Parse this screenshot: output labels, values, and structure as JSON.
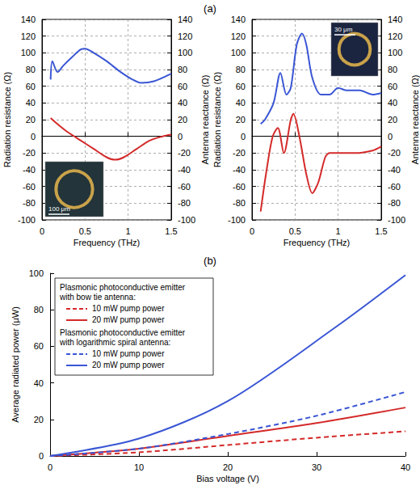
{
  "panel_labels": [
    "(a)",
    "(b)"
  ],
  "chart_data": [
    {
      "type": "line",
      "xlabel": "Frequency (THz)",
      "ylabel": "Radiation resistance (Ω)",
      "y2label": "Antenna reactance (Ω)",
      "xlim": [
        0,
        1.5
      ],
      "xticks": [
        0,
        0.5,
        1,
        1.5
      ],
      "ylim": [
        -100,
        140
      ],
      "yticks": [
        -100,
        -80,
        -60,
        -40,
        -20,
        0,
        20,
        40,
        60,
        80,
        100,
        120,
        140
      ],
      "y2lim": [
        -100,
        140
      ],
      "y2ticks": [
        -100,
        -80,
        -60,
        -40,
        -20,
        0,
        20,
        40,
        60,
        80,
        100,
        120,
        140
      ],
      "grid": true,
      "annotations": [
        "100 μm"
      ],
      "series": [
        {
          "color": "#3a56d4",
          "axis": "y",
          "line_style": "solid",
          "x": [
            0.1,
            0.12,
            0.18,
            0.25,
            0.35,
            0.45,
            0.5,
            0.6,
            0.75,
            0.9,
            1.05,
            1.15,
            1.3,
            1.5
          ],
          "values": [
            68,
            90,
            77,
            85,
            95,
            104,
            105,
            100,
            90,
            78,
            68,
            64,
            66,
            75
          ]
        },
        {
          "color": "#d42a2a",
          "axis": "y2",
          "line_style": "solid",
          "x": [
            0.1,
            0.2,
            0.3,
            0.45,
            0.6,
            0.75,
            0.85,
            0.95,
            1.1,
            1.25,
            1.4,
            1.5
          ],
          "values": [
            22,
            13,
            5,
            -5,
            -15,
            -25,
            -28,
            -25,
            -15,
            -5,
            0,
            2
          ]
        }
      ]
    },
    {
      "type": "line",
      "xlabel": "Frequency (THz)",
      "ylabel": "Radiation resistance (Ω)",
      "y2label": "Antenna reactance (Ω)",
      "xlim": [
        0,
        1.5
      ],
      "xticks": [
        0,
        0.5,
        1,
        1.5
      ],
      "ylim": [
        -100,
        140
      ],
      "yticks": [
        -100,
        -80,
        -60,
        -40,
        -20,
        0,
        20,
        40,
        60,
        80,
        100,
        120,
        140
      ],
      "y2lim": [
        -100,
        140
      ],
      "y2ticks": [
        -100,
        -80,
        -60,
        -40,
        -20,
        0,
        20,
        40,
        60,
        80,
        100,
        120,
        140
      ],
      "grid": true,
      "annotations": [
        "30 μm"
      ],
      "series": [
        {
          "color": "#3a56d4",
          "axis": "y",
          "line_style": "solid",
          "x": [
            0.1,
            0.15,
            0.25,
            0.33,
            0.4,
            0.45,
            0.52,
            0.58,
            0.63,
            0.7,
            0.8,
            0.9,
            1.0,
            1.1,
            1.25,
            1.4,
            1.5
          ],
          "values": [
            15,
            20,
            40,
            76,
            50,
            58,
            110,
            123,
            110,
            70,
            50,
            50,
            58,
            55,
            55,
            50,
            52
          ]
        },
        {
          "color": "#d42a2a",
          "axis": "y2",
          "line_style": "solid",
          "x": [
            0.1,
            0.17,
            0.24,
            0.3,
            0.37,
            0.45,
            0.48,
            0.55,
            0.63,
            0.7,
            0.77,
            0.85,
            0.9,
            1.0,
            1.2,
            1.4,
            1.5
          ],
          "values": [
            -90,
            -40,
            0,
            10,
            -20,
            20,
            27,
            0,
            -45,
            -68,
            -55,
            -25,
            -20,
            -20,
            -20,
            -17,
            -12
          ]
        }
      ]
    },
    {
      "type": "line",
      "xlabel": "Bias voltage (V)",
      "ylabel": "Average radiated power (μW)",
      "xlim": [
        0,
        40
      ],
      "xticks": [
        0,
        10,
        20,
        30,
        40
      ],
      "ylim": [
        0,
        100
      ],
      "yticks": [
        0,
        20,
        40,
        60,
        80,
        100
      ],
      "grid": false,
      "legend": "upper left",
      "legend_groups": [
        {
          "title": "Plasmonic photoconductive emitter with bow tie antenna:",
          "series": [
            {
              "name": "10 mW pump power",
              "color": "#d42a2a",
              "line_style": "dashed",
              "x": [
                0,
                10,
                20,
                30,
                40
              ],
              "values": [
                0,
                2,
                6,
                10,
                13.5
              ]
            },
            {
              "name": "20 mW pump power",
              "color": "#d42a2a",
              "line_style": "solid",
              "x": [
                0,
                10,
                20,
                30,
                40
              ],
              "values": [
                0,
                4,
                11,
                18,
                26.5
              ]
            }
          ]
        },
        {
          "title": "Plasmonic photoconductive emitter with logarithmic spiral antenna:",
          "series": [
            {
              "name": "10 mW pump power",
              "color": "#3a56d4",
              "line_style": "dashed",
              "x": [
                0,
                10,
                20,
                30,
                40
              ],
              "values": [
                0,
                4,
                12,
                22,
                35
              ]
            },
            {
              "name": "20 mW pump power",
              "color": "#3a56d4",
              "line_style": "solid",
              "x": [
                0,
                10,
                20,
                32,
                40
              ],
              "values": [
                0,
                9.5,
                30,
                70,
                99
              ]
            }
          ]
        }
      ]
    }
  ]
}
